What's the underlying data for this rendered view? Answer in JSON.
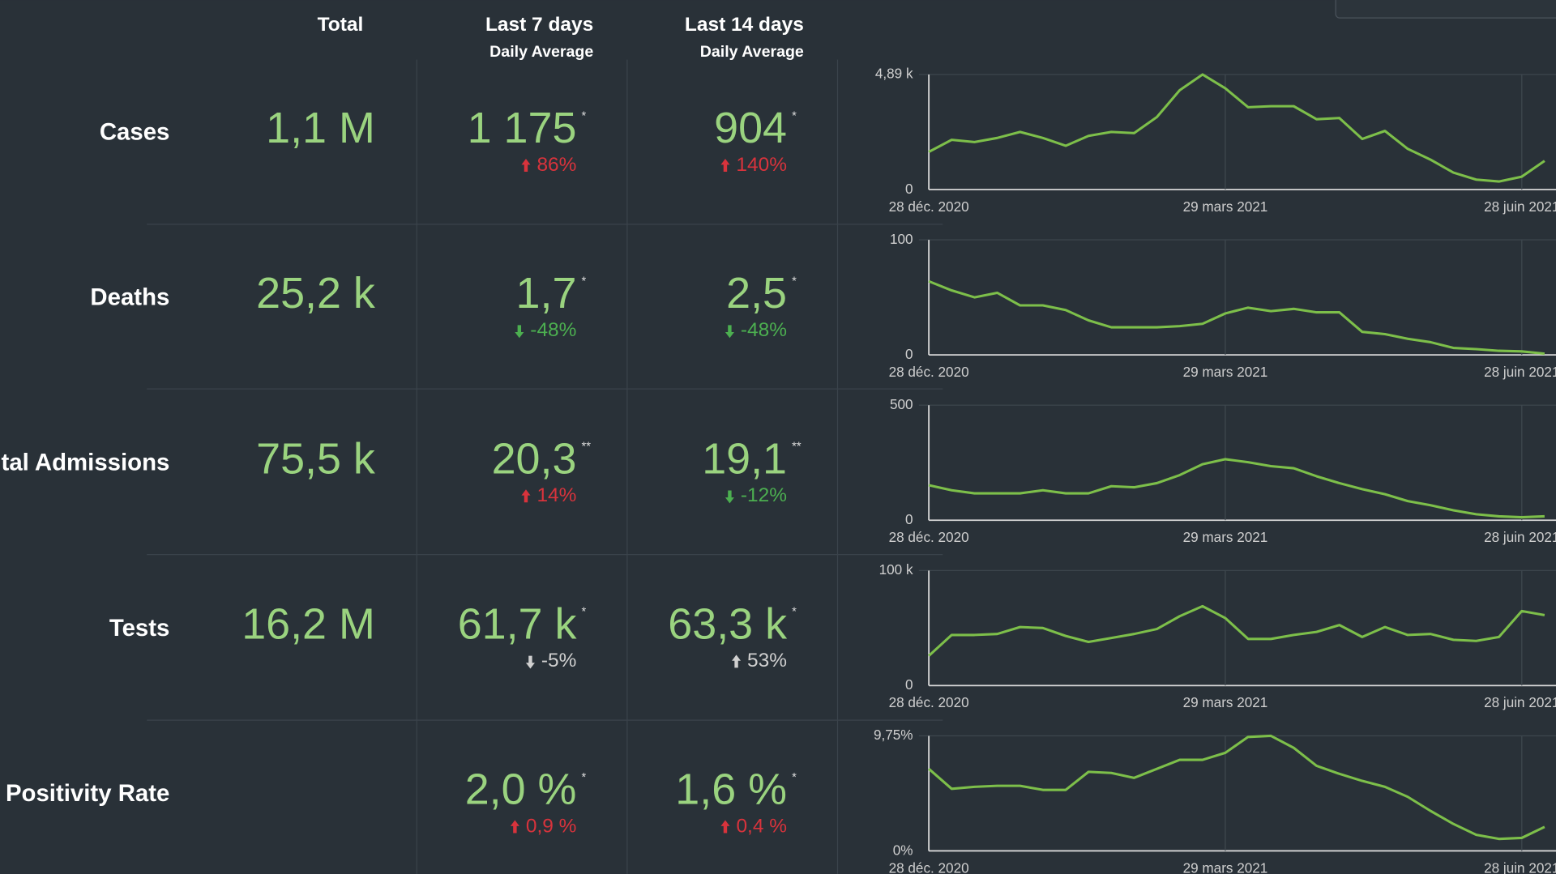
{
  "header": {
    "total": "Total",
    "last7": "Last 7 days",
    "last7_sub": "Daily Average",
    "last14": "Last 14 days",
    "last14_sub": "Daily Average"
  },
  "rows": [
    {
      "label": "Cases",
      "total": "1,1 M",
      "last7": {
        "value": "1 175",
        "note": "*",
        "change": {
          "text": "86%",
          "direction": "up",
          "color": "#d8333c"
        }
      },
      "last14": {
        "value": "904",
        "note": "*",
        "change": {
          "text": "140%",
          "direction": "up",
          "color": "#d8333c"
        }
      },
      "chart": {
        "type": "line",
        "color": "#7dbf4a",
        "xlim": [
          0,
          27.5
        ],
        "xticks": [
          {
            "value": 0,
            "label": "28 déc. 2020"
          },
          {
            "value": 13,
            "label": "29 mars 2021"
          },
          {
            "value": 26,
            "label": "28 juin 2021"
          }
        ],
        "ylim": [
          0,
          4890
        ],
        "yticks": [
          0,
          {
            "value": 4890,
            "label": "4,89 k"
          }
        ],
        "values": [
          1600,
          2110,
          2020,
          2190,
          2450,
          2190,
          1860,
          2280,
          2450,
          2400,
          3080,
          4220,
          4890,
          4300,
          3500,
          3540,
          3540,
          2990,
          3040,
          2150,
          2490,
          1730,
          1270,
          720,
          420,
          340,
          550,
          1220
        ]
      }
    },
    {
      "label": "Deaths",
      "total": "25,2 k",
      "last7": {
        "value": "1,7",
        "note": "*",
        "change": {
          "text": "-48%",
          "direction": "down",
          "color": "#4caf50"
        }
      },
      "last14": {
        "value": "2,5",
        "note": "*",
        "change": {
          "text": "-48%",
          "direction": "down",
          "color": "#4caf50"
        }
      },
      "chart": {
        "type": "line",
        "color": "#7dbf4a",
        "xlim": [
          0,
          27.5
        ],
        "xticks": [
          {
            "value": 0,
            "label": "28 déc. 2020"
          },
          {
            "value": 13,
            "label": "29 mars 2021"
          },
          {
            "value": 26,
            "label": "28 juin 2021"
          }
        ],
        "ylim": [
          0,
          100
        ],
        "yticks": [
          0,
          100
        ],
        "values": [
          64,
          56,
          50,
          54,
          43,
          43,
          39,
          30,
          24,
          24,
          24,
          25,
          27,
          36,
          41,
          38,
          40,
          37,
          37,
          20,
          18,
          14,
          11,
          6,
          5,
          3.5,
          3,
          1
        ]
      }
    },
    {
      "label": "Hospital Admissions",
      "total": "75,5 k",
      "last7": {
        "value": "20,3",
        "note": "**",
        "change": {
          "text": "14%",
          "direction": "up",
          "color": "#d8333c"
        }
      },
      "last14": {
        "value": "19,1",
        "note": "**",
        "change": {
          "text": "-12%",
          "direction": "down",
          "color": "#4caf50"
        }
      },
      "chart": {
        "type": "line",
        "color": "#7dbf4a",
        "xlim": [
          0,
          27.5
        ],
        "xticks": [
          {
            "value": 0,
            "label": "28 déc. 2020"
          },
          {
            "value": 13,
            "label": "29 mars 2021"
          },
          {
            "value": 26,
            "label": "28 juin 2021"
          }
        ],
        "ylim": [
          0,
          500
        ],
        "yticks": [
          0,
          500
        ],
        "values": [
          152,
          130,
          117,
          117,
          117,
          130,
          117,
          117,
          148,
          143,
          161,
          196,
          243,
          265,
          252,
          235,
          226,
          191,
          161,
          135,
          113,
          83,
          65,
          43,
          26,
          17,
          13,
          17
        ]
      }
    },
    {
      "label": "Tests",
      "total": "16,2 M",
      "last7": {
        "value": "61,7 k",
        "note": "*",
        "change": {
          "text": "-5%",
          "direction": "down",
          "color": "#d0d0d0"
        }
      },
      "last14": {
        "value": "63,3 k",
        "note": "*",
        "change": {
          "text": "53%",
          "direction": "up",
          "color": "#d0d0d0"
        }
      },
      "chart": {
        "type": "line",
        "color": "#7dbf4a",
        "xlim": [
          0,
          27.5
        ],
        "xticks": [
          {
            "value": 0,
            "label": "28 déc. 2020"
          },
          {
            "value": 13,
            "label": "29 mars 2021"
          },
          {
            "value": 26,
            "label": "28 juin 2021"
          }
        ],
        "ylim": [
          0,
          100000
        ],
        "yticks": [
          0,
          {
            "value": 100000,
            "label": "100 k"
          }
        ],
        "values": [
          25900,
          44000,
          44000,
          44800,
          50900,
          50000,
          43100,
          37900,
          41400,
          44800,
          49100,
          60300,
          69000,
          58600,
          40500,
          40500,
          44000,
          46600,
          52600,
          42200,
          50900,
          44000,
          44800,
          39700,
          38800,
          42200,
          64700,
          61200
        ]
      }
    },
    {
      "label": "Positivity Rate",
      "last7": {
        "value": "2,0 %",
        "note": "*",
        "change": {
          "text": "0,9 %",
          "direction": "up",
          "color": "#d8333c"
        }
      },
      "last14": {
        "value": "1,6 %",
        "note": "*",
        "change": {
          "text": "0,4 %",
          "direction": "up",
          "color": "#d8333c"
        }
      },
      "chart": {
        "type": "line",
        "color": "#7dbf4a",
        "xlim": [
          0,
          27.5
        ],
        "xticks": [
          {
            "value": 0,
            "label": "28 déc. 2020"
          },
          {
            "value": 13,
            "label": "29 mars 2021"
          },
          {
            "value": 26,
            "label": "28 juin 2021"
          }
        ],
        "ylim": [
          0,
          9.75
        ],
        "yticks": [
          {
            "value": 0,
            "label": "0%"
          },
          {
            "value": 9.75,
            "label": "9,75%"
          }
        ],
        "values": [
          6.95,
          5.26,
          5.43,
          5.51,
          5.51,
          5.17,
          5.17,
          6.7,
          6.61,
          6.19,
          6.95,
          7.72,
          7.72,
          8.31,
          9.66,
          9.75,
          8.73,
          7.21,
          6.53,
          5.93,
          5.43,
          4.58,
          3.39,
          2.29,
          1.36,
          1.02,
          1.1,
          2.03
        ]
      }
    }
  ]
}
